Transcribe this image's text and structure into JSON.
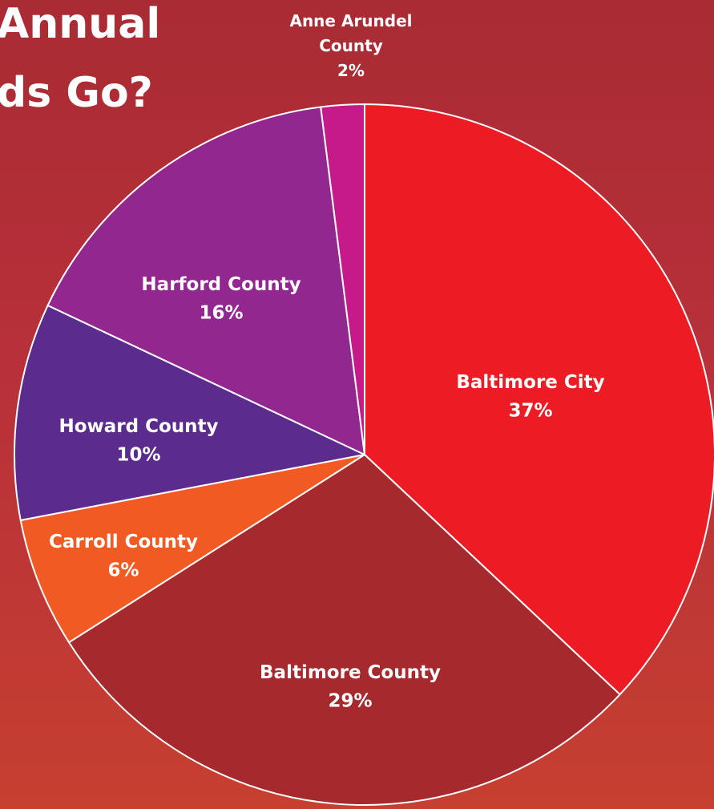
{
  "header": {
    "title_line1": "Annual",
    "title_line2": "ds Go?"
  },
  "chart_data": {
    "type": "pie",
    "title": "",
    "slices": [
      {
        "label": "Baltimore City",
        "value": 37,
        "display": "37%",
        "color": "#ed1c24"
      },
      {
        "label": "Baltimore County",
        "value": 29,
        "display": "29%",
        "color": "#a6292e"
      },
      {
        "label": "Carroll County",
        "value": 6,
        "display": "6%",
        "color": "#f15a22"
      },
      {
        "label": "Howard County",
        "value": 10,
        "display": "10%",
        "color": "#5b2c8e"
      },
      {
        "label": "Harford County",
        "value": 16,
        "display": "16%",
        "color": "#92278f"
      },
      {
        "label": "Anne Arundel County",
        "value": 2,
        "display": "2%",
        "color": "#c71a8a"
      }
    ],
    "start": "12 o'clock",
    "direction": "clockwise",
    "slice_border_color": "#ffffff"
  }
}
